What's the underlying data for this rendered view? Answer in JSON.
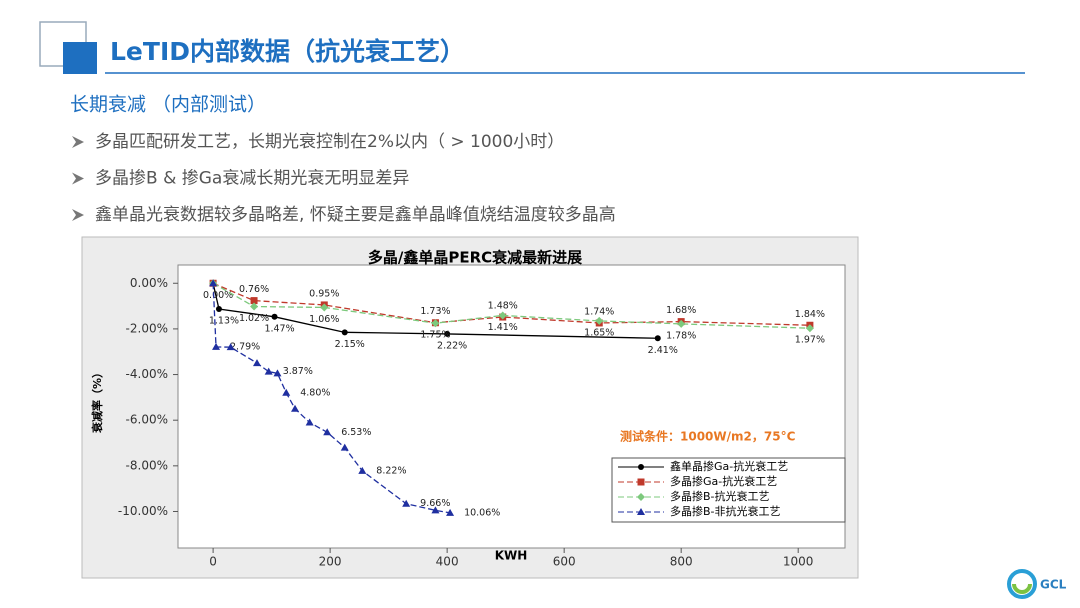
{
  "header": {
    "title": "LeTID内部数据（抗光衰工艺）"
  },
  "subtitle": "长期衰减 （内部测试）",
  "bullets": [
    "多晶匹配研发工艺，长期光衰控制在2%以内（ > 1000小时）",
    "多晶掺B & 掺Ga衰减长期光衰无明显差异",
    "鑫单晶光衰数据较多晶略差, 怀疑主要是鑫单晶峰值烧结温度较多晶高"
  ],
  "logo": "GCL",
  "chart_data": {
    "type": "line",
    "title": "多晶/鑫单晶PERC衰减最新进展",
    "x_label": "KWH",
    "y_label": "衰减率（%）",
    "annotation": "测试条件：1000W/m2，75°C",
    "xlim": [
      -60,
      1080
    ],
    "xticks": [
      0,
      200,
      400,
      600,
      800,
      1000
    ],
    "ylim": [
      -11.6,
      0.8
    ],
    "yticks": [
      {
        "value": 0,
        "label": "0.00%"
      },
      {
        "value": -2,
        "label": "-2.00%"
      },
      {
        "value": -4,
        "label": "-4.00%"
      },
      {
        "value": -6,
        "label": "-6.00%"
      },
      {
        "value": -8,
        "label": "-8.00%"
      },
      {
        "value": -10,
        "label": "-10.00%"
      }
    ],
    "legend": "lower right",
    "series": [
      {
        "name": "鑫单晶掺Ga-抗光衰工艺",
        "color": "#000000",
        "dash": false,
        "marker": "circle",
        "x": [
          0,
          10,
          105,
          225,
          400,
          760
        ],
        "values": [
          0,
          -1.13,
          -1.47,
          -2.15,
          -2.22,
          -2.41
        ],
        "value_labels": [
          "0.00%",
          "1.13%",
          "1.47%",
          "2.15%",
          "2.22%",
          "2.41%"
        ]
      },
      {
        "name": "多晶掺Ga-抗光衰工艺",
        "color": "#c0392b",
        "dash": true,
        "marker": "square",
        "x": [
          0,
          70,
          190,
          380,
          495,
          660,
          800,
          1020
        ],
        "values": [
          0,
          -0.76,
          -0.95,
          -1.73,
          -1.48,
          -1.74,
          -1.68,
          -1.84
        ],
        "value_labels": [
          null,
          "0.76%",
          "0.95%",
          "1.73%",
          "1.48%",
          "1.74%",
          "1.68%",
          "1.84%"
        ]
      },
      {
        "name": "多晶掺B-抗光衰工艺",
        "color": "#7dc97d",
        "dash": true,
        "marker": "diamond",
        "x": [
          0,
          70,
          190,
          380,
          495,
          660,
          800,
          1020
        ],
        "values": [
          0,
          -1.02,
          -1.06,
          -1.75,
          -1.41,
          -1.65,
          -1.78,
          -1.97
        ],
        "value_labels": [
          null,
          "1.02%",
          "1.06%",
          "1.75%",
          "1.41%",
          "1.65%",
          "1.78%",
          "1.97%"
        ]
      },
      {
        "name": "多晶掺B-非抗光衰工艺",
        "color": "#1f2fa0",
        "dash": true,
        "marker": "triangle",
        "x": [
          0,
          5,
          30,
          75,
          95,
          110,
          125,
          140,
          165,
          195,
          225,
          255,
          330,
          380,
          405
        ],
        "values": [
          0,
          -2.79,
          -2.8,
          -3.5,
          -3.87,
          -3.95,
          -4.8,
          -5.5,
          -6.1,
          -6.53,
          -7.2,
          -8.22,
          -9.66,
          -9.95,
          -10.06
        ],
        "value_labels": [
          null,
          "2.79%",
          null,
          null,
          "3.87%",
          null,
          "4.80%",
          null,
          null,
          "6.53%",
          null,
          "8.22%",
          "9.66%",
          null,
          "10.06%"
        ]
      }
    ]
  }
}
